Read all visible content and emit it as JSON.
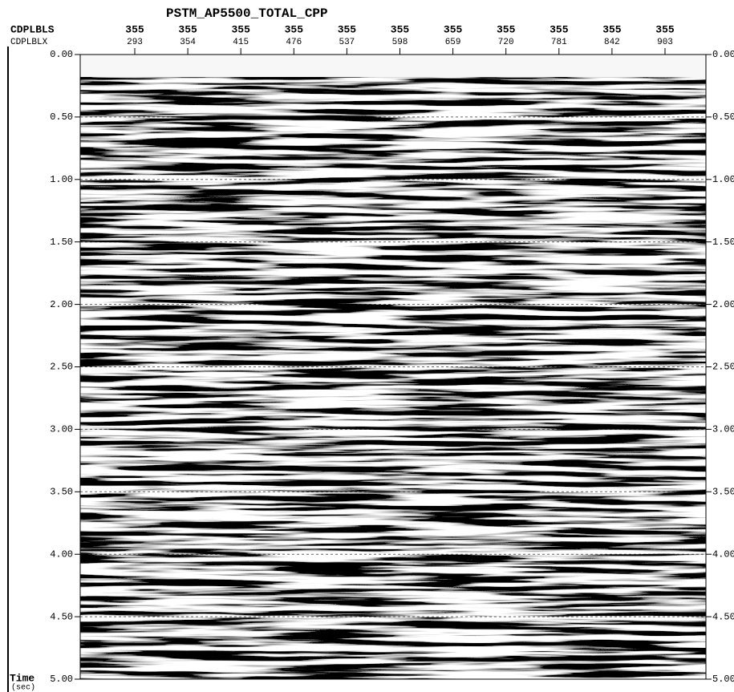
{
  "header": {
    "title": "PSTM_AP5500_TOTAL_CPP",
    "row_labels": [
      "CDPLBLS",
      "CDPLBLX"
    ]
  },
  "traces": [
    {
      "cdplbls": "355",
      "cdplblx": "293"
    },
    {
      "cdplbls": "355",
      "cdplblx": "354"
    },
    {
      "cdplbls": "355",
      "cdplblx": "415"
    },
    {
      "cdplbls": "355",
      "cdplblx": "476"
    },
    {
      "cdplbls": "355",
      "cdplblx": "537"
    },
    {
      "cdplbls": "355",
      "cdplblx": "598"
    },
    {
      "cdplbls": "355",
      "cdplblx": "659"
    },
    {
      "cdplbls": "355",
      "cdplblx": "720"
    },
    {
      "cdplbls": "355",
      "cdplblx": "781"
    },
    {
      "cdplbls": "355",
      "cdplblx": "842"
    },
    {
      "cdplbls": "355",
      "cdplblx": "903"
    }
  ],
  "time_axis": {
    "label": "Time",
    "unit": "(sec)",
    "ticks": [
      "0.00",
      "0.50",
      "1.00",
      "1.50",
      "2.00",
      "2.50",
      "3.00",
      "3.50",
      "4.00",
      "4.50",
      "5.00"
    ]
  }
}
